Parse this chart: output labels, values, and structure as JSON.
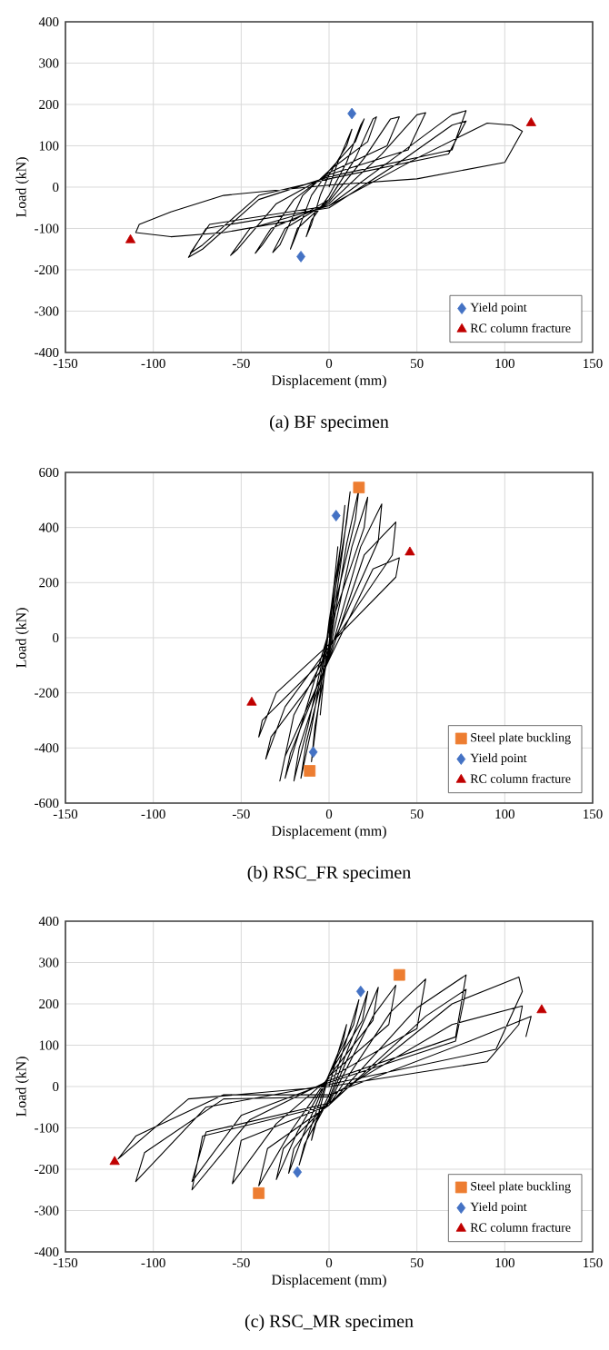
{
  "chart_data": [
    {
      "type": "scatter",
      "xlabel": "Displacement (mm)",
      "ylabel": "Load (kN)",
      "annotations": [
        "(a) BF specimen"
      ],
      "xlim": [
        -150,
        150
      ],
      "ylim": [
        -400,
        400
      ],
      "xticks": [
        -150,
        -100,
        -50,
        0,
        50,
        100,
        150
      ],
      "yticks": [
        -400,
        -300,
        -200,
        -100,
        0,
        100,
        200,
        300,
        400
      ],
      "grid": true,
      "legend": "bottom right",
      "series": [
        {
          "type": "line",
          "color": "#000000",
          "x": [
            0,
            5,
            10,
            13,
            10,
            0,
            -5,
            -10,
            -13,
            -10,
            0,
            10,
            18,
            20,
            15,
            0,
            -10,
            -20,
            -22,
            -18,
            0,
            15,
            25,
            27,
            22,
            0,
            -15,
            -28,
            -32,
            -25,
            0,
            20,
            35,
            40,
            33,
            0,
            -20,
            -38,
            -42,
            -33,
            0,
            30,
            50,
            55,
            45,
            0,
            -30,
            -52,
            -56,
            -45,
            0,
            40,
            70,
            78,
            70,
            0,
            -40,
            -72,
            -80,
            -70,
            0,
            40,
            70,
            78,
            68,
            0,
            -40,
            -72,
            -79,
            -68,
            0,
            50,
            90,
            104,
            110,
            100,
            50,
            0,
            -60,
            -90,
            -108,
            -110,
            -90,
            -60,
            -20,
            0
          ],
          "values": [
            0,
            60,
            110,
            140,
            100,
            30,
            -20,
            -90,
            -120,
            -80,
            -20,
            60,
            150,
            165,
            110,
            40,
            -20,
            -130,
            -150,
            -100,
            -30,
            70,
            165,
            170,
            110,
            40,
            -20,
            -140,
            -158,
            -100,
            -35,
            70,
            165,
            170,
            100,
            35,
            -30,
            -140,
            -160,
            -100,
            -40,
            80,
            175,
            180,
            90,
            30,
            -40,
            -150,
            -165,
            -100,
            -45,
            80,
            175,
            185,
            90,
            25,
            -30,
            -150,
            -170,
            -100,
            -50,
            60,
            150,
            160,
            80,
            20,
            -20,
            -140,
            -160,
            -90,
            -45,
            70,
            155,
            150,
            135,
            60,
            20,
            5,
            -20,
            -60,
            -90,
            -110,
            -120,
            -110,
            -80,
            -30
          ]
        },
        {
          "name": "Yield point",
          "color": "#4472c4",
          "marker": "diamond",
          "x": [
            13,
            -16
          ],
          "values": [
            178,
            -168
          ]
        },
        {
          "name": "RC column fracture",
          "color": "#c00000",
          "marker": "triangle",
          "x": [
            115,
            -113
          ],
          "values": [
            155,
            -128
          ]
        }
      ]
    },
    {
      "type": "scatter",
      "xlabel": "Displacement (mm)",
      "ylabel": "Load (kN)",
      "annotations": [
        "(b) RSC_FR specimen"
      ],
      "xlim": [
        -150,
        150
      ],
      "ylim": [
        -600,
        600
      ],
      "xticks": [
        -150,
        -100,
        -50,
        0,
        50,
        100,
        150
      ],
      "yticks": [
        -600,
        -400,
        -200,
        0,
        200,
        400,
        600
      ],
      "grid": true,
      "legend": "bottom right",
      "series": [
        {
          "type": "line",
          "color": "#000000",
          "x": [
            0,
            3,
            5,
            3,
            0,
            -3,
            -5,
            -3,
            0,
            6,
            9,
            7,
            0,
            -7,
            -10,
            -8,
            0,
            8,
            12,
            10,
            0,
            -10,
            -16,
            -13,
            0,
            10,
            17,
            15,
            0,
            -12,
            -20,
            -17,
            0,
            13,
            22,
            20,
            0,
            -15,
            -25,
            -22,
            0,
            18,
            30,
            28,
            5,
            -20,
            -28,
            -25,
            0,
            20,
            38,
            36,
            5,
            -25,
            -36,
            -33,
            0,
            25,
            40,
            38,
            5,
            -30,
            -40,
            -38,
            0
          ],
          "values": [
            0,
            200,
            330,
            200,
            50,
            -150,
            -280,
            -150,
            -20,
            300,
            480,
            350,
            60,
            -300,
            -450,
            -320,
            -40,
            330,
            530,
            420,
            40,
            -330,
            -510,
            -380,
            -50,
            340,
            540,
            430,
            30,
            -320,
            -520,
            -400,
            -60,
            330,
            510,
            400,
            25,
            -300,
            -510,
            -420,
            -70,
            330,
            485,
            350,
            20,
            -280,
            -520,
            -430,
            -80,
            300,
            420,
            300,
            10,
            -250,
            -440,
            -360,
            -80,
            250,
            290,
            220,
            5,
            -200,
            -360,
            -300,
            -60
          ]
        },
        {
          "name": "Steel plate buckling",
          "color": "#ed7d31",
          "marker": "square",
          "x": [
            17,
            -11
          ],
          "values": [
            545,
            -483
          ]
        },
        {
          "name": "Yield point",
          "color": "#4472c4",
          "marker": "diamond",
          "x": [
            4,
            -9
          ],
          "values": [
            443,
            -415
          ]
        },
        {
          "name": "RC column fracture",
          "color": "#c00000",
          "marker": "triangle",
          "x": [
            46,
            -44
          ],
          "values": [
            310,
            -235
          ]
        }
      ]
    },
    {
      "type": "scatter",
      "xlabel": "Displacement (mm)",
      "ylabel": "Load (kN)",
      "annotations": [
        "(c) RSC_MR specimen"
      ],
      "xlim": [
        -150,
        150
      ],
      "ylim": [
        -400,
        400
      ],
      "xticks": [
        -150,
        -100,
        -50,
        0,
        50,
        100,
        150
      ],
      "yticks": [
        -400,
        -300,
        -200,
        -100,
        0,
        100,
        200,
        300,
        400
      ],
      "grid": true,
      "legend": "bottom right",
      "series": [
        {
          "type": "line",
          "color": "#000000",
          "x": [
            0,
            5,
            10,
            8,
            0,
            -5,
            -10,
            -8,
            0,
            12,
            17,
            14,
            0,
            -12,
            -17,
            -14,
            0,
            16,
            22,
            19,
            0,
            -15,
            -23,
            -20,
            0,
            20,
            28,
            25,
            0,
            -18,
            -30,
            -26,
            0,
            25,
            38,
            34,
            0,
            -22,
            -40,
            -35,
            0,
            35,
            55,
            50,
            0,
            -30,
            -55,
            -50,
            0,
            50,
            78,
            72,
            0,
            -45,
            -78,
            -72,
            0,
            55,
            78,
            72,
            0,
            -50,
            -78,
            -70,
            0,
            70,
            108,
            110,
            95,
            0,
            -70,
            -110,
            -105,
            -60,
            0,
            70,
            110,
            108,
            90,
            0,
            -80,
            -120,
            -110,
            -60,
            0,
            80,
            115,
            112
          ],
          "values": [
            0,
            80,
            150,
            110,
            30,
            -50,
            -130,
            -90,
            -20,
            140,
            210,
            150,
            30,
            -120,
            -190,
            -140,
            -30,
            150,
            230,
            160,
            30,
            -120,
            -210,
            -150,
            -35,
            160,
            240,
            160,
            25,
            -110,
            -225,
            -150,
            -40,
            170,
            245,
            150,
            25,
            -110,
            -240,
            -150,
            -45,
            180,
            260,
            140,
            20,
            -90,
            -235,
            -130,
            -45,
            190,
            270,
            120,
            15,
            -80,
            -250,
            -120,
            -45,
            170,
            235,
            110,
            10,
            -70,
            -230,
            -110,
            -40,
            200,
            265,
            230,
            90,
            5,
            -50,
            -230,
            -160,
            -30,
            -25,
            150,
            195,
            150,
            60,
            0,
            -30,
            -175,
            -120,
            -20,
            -20,
            110,
            170,
            120
          ]
        },
        {
          "name": "Steel plate buckling",
          "color": "#ed7d31",
          "marker": "square",
          "x": [
            40,
            -40
          ],
          "values": [
            270,
            -258
          ]
        },
        {
          "name": "Yield point",
          "color": "#4472c4",
          "marker": "diamond",
          "x": [
            18,
            -18
          ],
          "values": [
            230,
            -207
          ]
        },
        {
          "name": "RC column fracture",
          "color": "#c00000",
          "marker": "triangle",
          "x": [
            121,
            -122
          ],
          "values": [
            185,
            -182
          ]
        }
      ]
    }
  ]
}
